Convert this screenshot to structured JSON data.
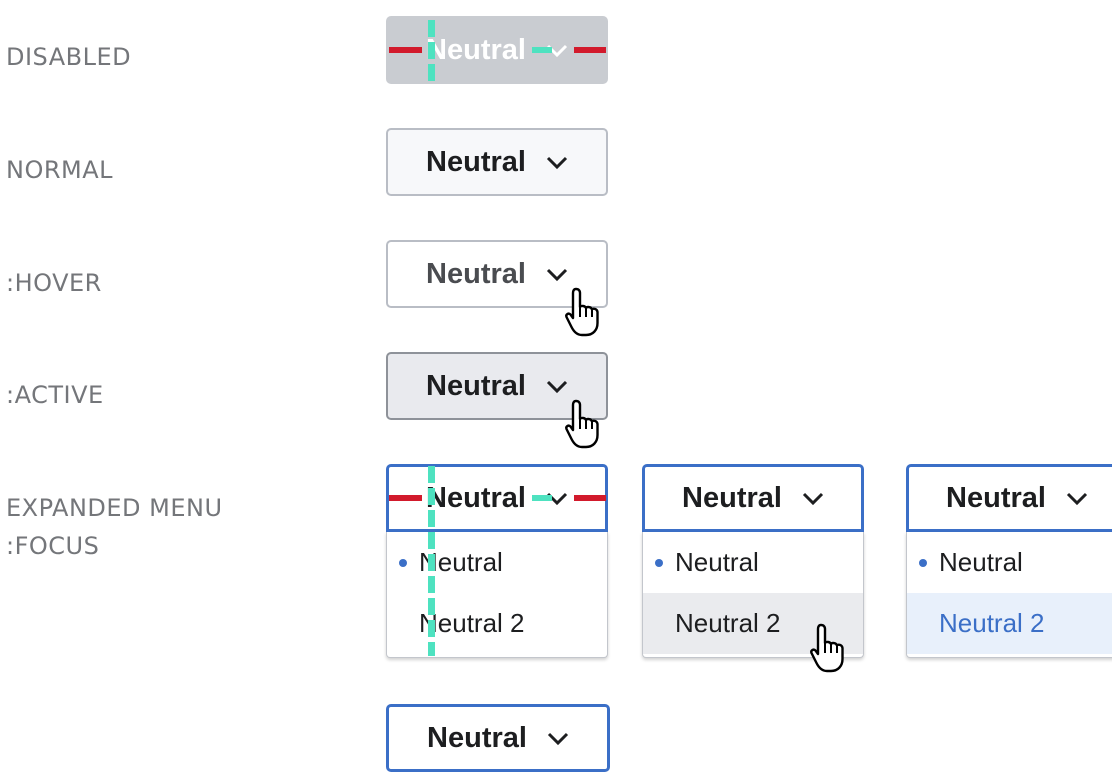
{
  "states": {
    "disabled": "DISABLED",
    "normal": "NORMAL",
    "hover": ":HOVER",
    "active": ":ACTIVE",
    "expanded": "EXPANDED MENU\n:FOCUS"
  },
  "dropdown": {
    "label": "Neutral",
    "chevron_icon": "chevron-down-icon"
  },
  "menu": {
    "items": [
      "Neutral",
      "Neutral 2"
    ],
    "selected_index": 0
  },
  "colors": {
    "focus_blue": "#3b6fc7",
    "disabled_bg": "#c9ccd1",
    "guide_red": "#d21a2c",
    "guide_teal": "#4ee2c0"
  }
}
